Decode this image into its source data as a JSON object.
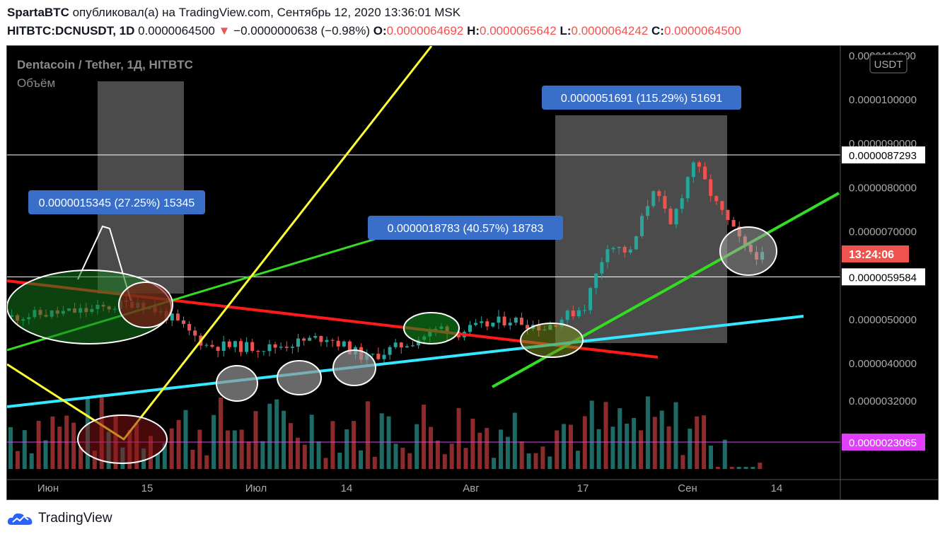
{
  "header": {
    "author": "SpartaBTC",
    "published_text": "опубликовал(а) на TradingView.com, Сентябрь 12, 2020 13:36:01 MSK",
    "symbol": "HITBTC:DCNUSDT, 1D",
    "last": "0.0000064500",
    "change": "−0.0000000638 (−0.98%)",
    "o_label": "O:",
    "o": "0.0000064692",
    "h_label": "H:",
    "h": "0.0000065642",
    "l_label": "L:",
    "l": "0.0000064242",
    "c_label": "C:",
    "c": "0.0000064500"
  },
  "chart_title": "Dentacoin / Tether, 1Д, HITBTC",
  "volume_label": "Объём",
  "currency": "USDT",
  "countdown": "13:24:06",
  "footer": {
    "brand": "TradingView"
  },
  "colors": {
    "up": "#26a69a",
    "down": "#ef5350",
    "bg": "#000000",
    "magenta": "#e040fb",
    "measure": "#3a6fc9"
  },
  "chart_data": {
    "type": "candlestick",
    "y_ticks": [
      "0.0000040000",
      "0.0000050000",
      "0.0000060000",
      "0.0000070000",
      "0.0000080000",
      "0.0000090000",
      "0.0000100000",
      "0.0000110000"
    ],
    "y_ticks_low": [
      "0.0000032000"
    ],
    "price_labels": [
      {
        "text": "0.0000087293",
        "value": 8.7293e-06,
        "style": "white"
      },
      {
        "text": "0.0000059584",
        "value": 5.9584e-06,
        "style": "white"
      },
      {
        "text": "0.0000023065",
        "value": 2.3065e-06,
        "style": "magenta"
      }
    ],
    "x_ticks": [
      "Июн",
      "15",
      "Июл",
      "14",
      "Авг",
      "17",
      "Сен",
      "14"
    ],
    "measures": [
      {
        "text": "0.0000015345 (27.25%) 15345"
      },
      {
        "text": "0.0000018783 (40.57%) 18783"
      },
      {
        "text": "0.0000051691 (115.29%) 51691"
      }
    ],
    "trendlines": [
      {
        "name": "red",
        "color": "#ff1a1a"
      },
      {
        "name": "green",
        "color": "#33dd22"
      },
      {
        "name": "cyan",
        "color": "#33e8ff"
      },
      {
        "name": "yellow",
        "color": "#ffff33"
      }
    ]
  }
}
